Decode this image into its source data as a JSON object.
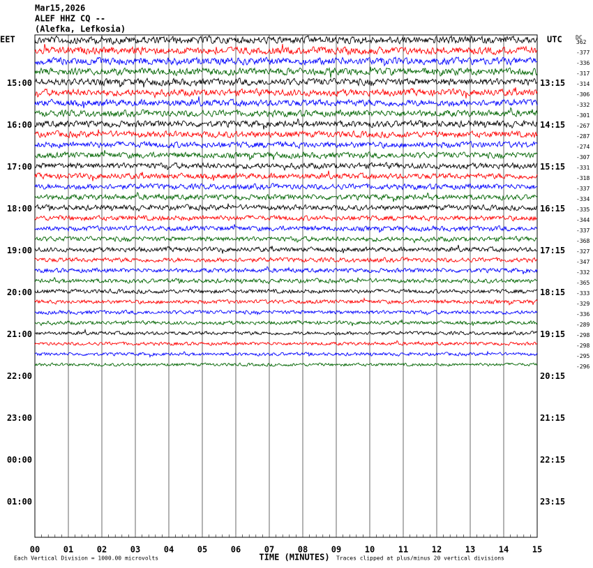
{
  "header": {
    "date": "Mar15,2026",
    "station": "ALEF HHZ CQ --",
    "location": "(Alefka, Lefkosia)"
  },
  "left_zone": "EET",
  "right_zone": "UTC",
  "dc_label": "DC",
  "left_labels": [
    "15:00",
    "16:00",
    "17:00",
    "18:00",
    "19:00",
    "20:00",
    "21:00",
    "22:00",
    "23:00",
    "00:00",
    "01:00"
  ],
  "right_labels": [
    "13:15",
    "14:15",
    "15:15",
    "16:15",
    "17:15",
    "18:15",
    "19:15",
    "20:15",
    "21:15",
    "22:15",
    "23:15"
  ],
  "dc_values": [
    "362",
    "-377",
    "-336",
    "-317",
    "-314",
    "-306",
    "-332",
    "-301",
    "-267",
    "-287",
    "-274",
    "-307",
    "-331",
    "-318",
    "-337",
    "-334",
    "-335",
    "-344",
    "-337",
    "-368",
    "-327",
    "-347",
    "-332",
    "-365",
    "-333",
    "-329",
    "-336",
    "-289",
    "-298",
    "-298",
    "-295",
    "-296"
  ],
  "trace_colors": [
    "#000000",
    "#ff0000",
    "#0000ff",
    "#006400"
  ],
  "x_ticks": [
    "00",
    "01",
    "02",
    "03",
    "04",
    "05",
    "06",
    "07",
    "08",
    "09",
    "10",
    "11",
    "12",
    "13",
    "14",
    "15"
  ],
  "x_label": "TIME (MINUTES)",
  "footer": {
    "scale": "Each Vertical Division = 1000.00 microvolts",
    "clip": "Traces clipped at plus/minus 20 vertical divisions"
  }
}
